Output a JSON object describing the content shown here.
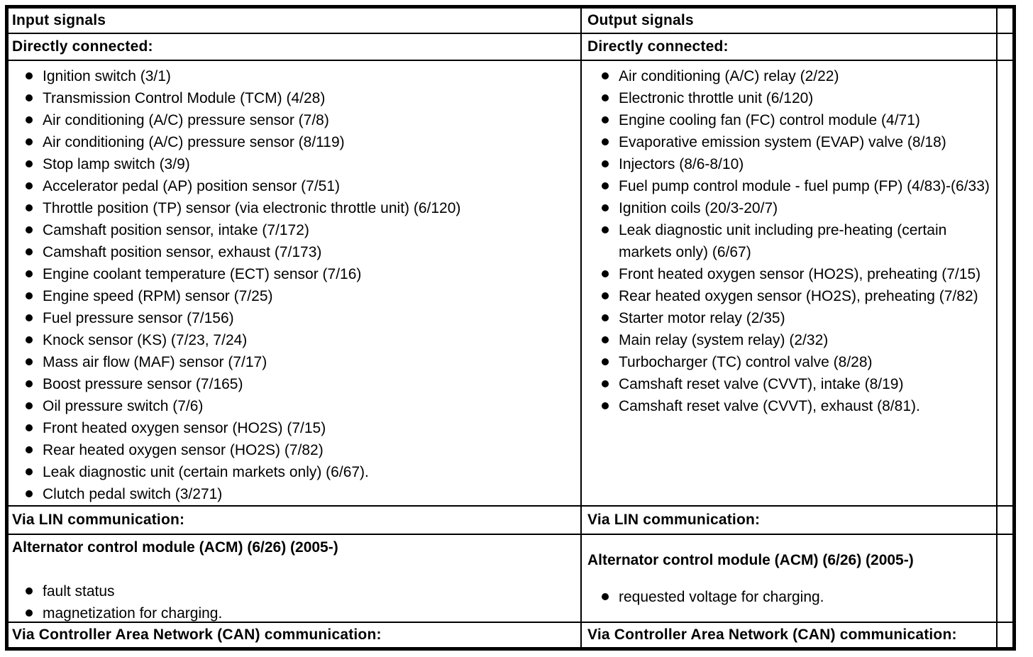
{
  "input": {
    "header": "Input signals",
    "directly_connected_heading": "Directly connected:",
    "directly_connected": [
      "Ignition switch (3/1)",
      "Transmission Control Module (TCM) (4/28)",
      "Air conditioning (A/C) pressure sensor (7/8)",
      "Air conditioning (A/C) pressure sensor (8/119)",
      "Stop lamp switch (3/9)",
      "Accelerator pedal (AP) position sensor (7/51)",
      "Throttle position (TP) sensor (via electronic throttle unit) (6/120)",
      "Camshaft position sensor, intake (7/172)",
      "Camshaft position sensor, exhaust (7/173)",
      "Engine coolant temperature (ECT) sensor (7/16)",
      "Engine speed (RPM) sensor (7/25)",
      "Fuel pressure sensor (7/156)",
      "Knock sensor (KS) (7/23, 7/24)",
      "Mass air flow (MAF) sensor (7/17)",
      "Boost pressure sensor (7/165)",
      "Oil pressure switch (7/6)",
      "Front heated oxygen sensor (HO2S) (7/15)",
      "Rear heated oxygen sensor (HO2S) (7/82)",
      "Leak diagnostic unit (certain markets only) (6/67).",
      "Clutch pedal switch (3/271)"
    ],
    "via_lin_heading": "Via LIN communication:",
    "acm_heading": "Alternator control module (ACM) (6/26) (2005-)",
    "acm_items": [
      "fault status",
      "magnetization for charging."
    ],
    "via_can_heading": "Via Controller Area Network (CAN) communication:"
  },
  "output": {
    "header": "Output signals",
    "directly_connected_heading": "Directly connected:",
    "directly_connected": [
      "Air conditioning (A/C) relay (2/22)",
      "Electronic throttle unit (6/120)",
      "Engine cooling fan (FC) control module (4/71)",
      "Evaporative emission system (EVAP) valve (8/18)",
      "Injectors (8/6-8/10)",
      "Fuel pump control module - fuel pump (FP) (4/83)-(6/33)",
      "Ignition coils (20/3-20/7)",
      "Leak diagnostic unit including pre-heating (certain markets only) (6/67)",
      "Front heated oxygen sensor (HO2S), preheating (7/15)",
      "Rear heated oxygen sensor (HO2S), preheating (7/82)",
      "Starter motor relay (2/35)",
      "Main relay (system relay) (2/32)",
      "Turbocharger (TC) control valve (8/28)",
      "Camshaft reset valve (CVVT), intake (8/19)",
      "Camshaft reset valve (CVVT), exhaust (8/81)."
    ],
    "via_lin_heading": "Via LIN communication:",
    "acm_heading": "Alternator control module (ACM) (6/26) (2005-)",
    "acm_items": [
      "requested voltage for charging."
    ],
    "via_can_heading": "Via Controller Area Network (CAN) communication:"
  },
  "colors": {
    "border": "#000000",
    "text": "#000000",
    "background": "#ffffff"
  }
}
